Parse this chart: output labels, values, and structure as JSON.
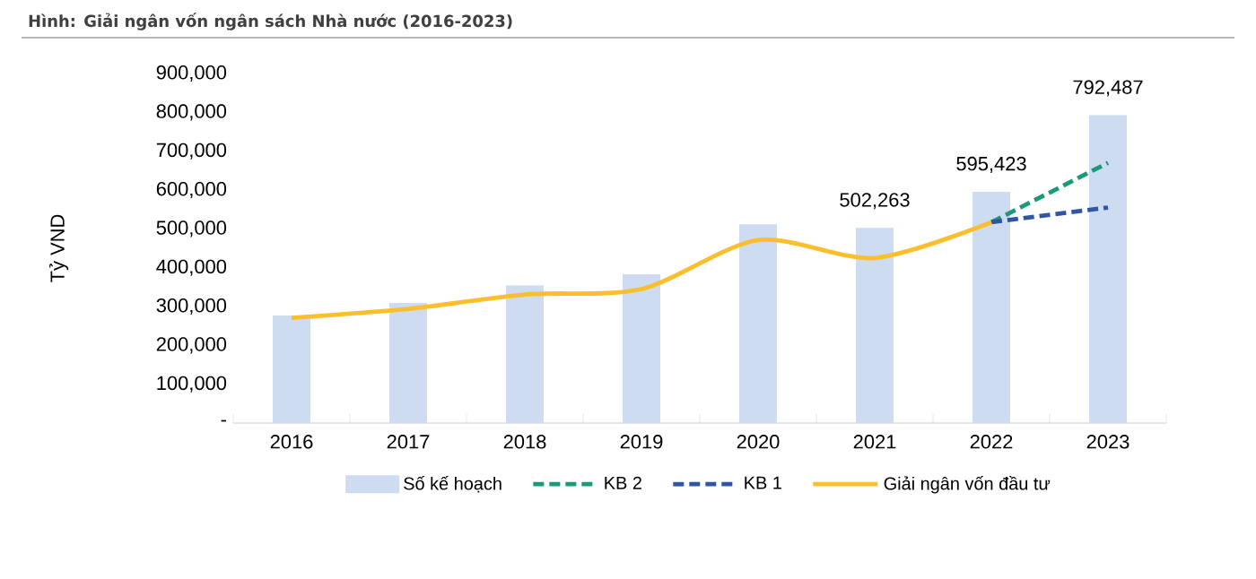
{
  "chart_data": {
    "type": "bar",
    "title": "Hình: Giải ngân vốn ngân sách Nhà nước (2016-2023)",
    "ylabel": "Tỷ VND",
    "categories": [
      "2016",
      "2017",
      "2018",
      "2019",
      "2020",
      "2021",
      "2022",
      "2023"
    ],
    "series": [
      {
        "name": "Số kế hoạch",
        "color": "#cddcf0",
        "values": [
          277000,
          309000,
          354000,
          383000,
          512000,
          502263,
          595423,
          792487
        ],
        "value_labels": [
          null,
          null,
          null,
          null,
          null,
          "502,263",
          "595,423",
          "792,487"
        ]
      },
      {
        "name": "KB 2",
        "type": "line",
        "color": "#1a9a7a",
        "line_style": "dashed",
        "values": [
          null,
          null,
          null,
          null,
          null,
          null,
          517000,
          670000
        ]
      },
      {
        "name": "KB 1",
        "type": "line",
        "color": "#2f55a4",
        "line_style": "dashed",
        "values": [
          null,
          null,
          null,
          null,
          null,
          null,
          517000,
          555000
        ]
      },
      {
        "name": "Giải ngân vốn đầu tư",
        "type": "line",
        "color": "#fbbf2e",
        "line_style": "solid",
        "values": [
          271000,
          294000,
          331000,
          345000,
          471000,
          425000,
          517000,
          null
        ]
      }
    ],
    "ylim": [
      0,
      900000
    ],
    "yticks": [
      {
        "value": 0,
        "label": "-"
      },
      {
        "value": 100000,
        "label": "100,000"
      },
      {
        "value": 200000,
        "label": "200,000"
      },
      {
        "value": 300000,
        "label": "300,000"
      },
      {
        "value": 400000,
        "label": "400,000"
      },
      {
        "value": 500000,
        "label": "500,000"
      },
      {
        "value": 600000,
        "label": "600,000"
      },
      {
        "value": 700000,
        "label": "700,000"
      },
      {
        "value": 800000,
        "label": "800,000"
      },
      {
        "value": 900000,
        "label": "900,000"
      }
    ],
    "grid": false,
    "legend": "bottom",
    "marker": "none"
  }
}
